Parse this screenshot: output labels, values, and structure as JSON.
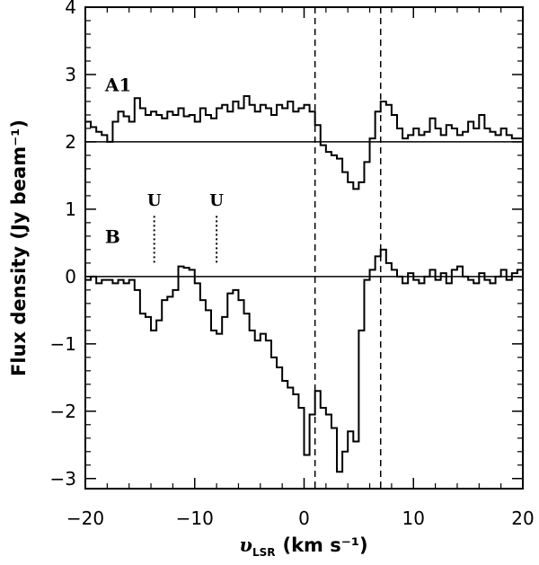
{
  "chart_data": {
    "type": "line",
    "title": "",
    "xlabel_main": "υ",
    "xlabel_sub": "LSR",
    "xlabel_units": "(km s⁻¹)",
    "ylabel": "Flux density (Jy beam⁻¹)",
    "xlim": [
      -20,
      20
    ],
    "ylim": [
      -3.15,
      4
    ],
    "xticks": [
      -20,
      -10,
      0,
      10,
      20
    ],
    "xtick_labels": [
      "−20",
      "−10",
      "0",
      "10",
      "20"
    ],
    "yticks": [
      -3,
      -2,
      -1,
      0,
      1,
      2,
      3,
      4
    ],
    "ytick_labels": [
      "−3",
      "−2",
      "−1",
      "0",
      "1",
      "2",
      "3",
      "4"
    ],
    "grid": false,
    "line_style": "histogram-step",
    "color": "#000000",
    "baselines": [
      2.0,
      0.0
    ],
    "vlines_dashed": [
      1.0,
      7.0
    ],
    "panel_labels": [
      {
        "text": "A1",
        "x": -18.2,
        "y": 2.75
      },
      {
        "text": "B",
        "x": -18.2,
        "y": 0.5
      }
    ],
    "markers": [
      {
        "text": "U",
        "x": -13.7,
        "y_text": 1.05,
        "y_top": 0.9,
        "y_bottom": 0.2
      },
      {
        "text": "U",
        "x": -8.0,
        "y_text": 1.05,
        "y_top": 0.9,
        "y_bottom": 0.2
      }
    ],
    "series": [
      {
        "name": "A1",
        "x": [
          -20.0,
          -19.5,
          -19.0,
          -18.5,
          -18.0,
          -17.5,
          -17.0,
          -16.5,
          -16.0,
          -15.5,
          -15.0,
          -14.5,
          -14.0,
          -13.5,
          -13.0,
          -12.5,
          -12.0,
          -11.5,
          -11.0,
          -10.5,
          -10.0,
          -9.5,
          -9.0,
          -8.5,
          -8.0,
          -7.5,
          -7.0,
          -6.5,
          -6.0,
          -5.5,
          -5.0,
          -4.5,
          -4.0,
          -3.5,
          -3.0,
          -2.5,
          -2.0,
          -1.5,
          -1.0,
          -0.5,
          0.0,
          0.5,
          1.0,
          1.5,
          2.0,
          2.5,
          3.0,
          3.5,
          4.0,
          4.5,
          5.0,
          5.5,
          6.0,
          6.5,
          7.0,
          7.5,
          8.0,
          8.5,
          9.0,
          9.5,
          10.0,
          10.5,
          11.0,
          11.5,
          12.0,
          12.5,
          13.0,
          13.5,
          14.0,
          14.5,
          15.0,
          15.5,
          16.0,
          16.5,
          17.0,
          17.5,
          18.0,
          18.5,
          19.0,
          19.5
        ],
        "y": [
          2.3,
          2.22,
          2.15,
          2.1,
          2.0,
          2.3,
          2.45,
          2.38,
          2.3,
          2.65,
          2.5,
          2.4,
          2.45,
          2.4,
          2.35,
          2.45,
          2.4,
          2.5,
          2.38,
          2.4,
          2.3,
          2.5,
          2.4,
          2.35,
          2.5,
          2.55,
          2.45,
          2.6,
          2.5,
          2.68,
          2.55,
          2.45,
          2.55,
          2.5,
          2.4,
          2.55,
          2.5,
          2.6,
          2.45,
          2.5,
          2.55,
          2.45,
          2.25,
          1.95,
          1.85,
          1.8,
          1.75,
          1.55,
          1.4,
          1.3,
          1.4,
          1.7,
          2.05,
          2.45,
          2.6,
          2.55,
          2.4,
          2.2,
          2.05,
          2.1,
          2.2,
          2.1,
          2.15,
          2.35,
          2.2,
          2.1,
          2.25,
          2.2,
          2.1,
          2.15,
          2.3,
          2.2,
          2.4,
          2.2,
          2.15,
          2.1,
          2.2,
          2.1,
          2.05,
          2.05
        ]
      },
      {
        "name": "B",
        "x": [
          -20.0,
          -19.5,
          -19.0,
          -18.5,
          -18.0,
          -17.5,
          -17.0,
          -16.5,
          -16.0,
          -15.5,
          -15.0,
          -14.5,
          -14.0,
          -13.5,
          -13.0,
          -12.5,
          -12.0,
          -11.5,
          -11.0,
          -10.5,
          -10.0,
          -9.5,
          -9.0,
          -8.5,
          -8.0,
          -7.5,
          -7.0,
          -6.5,
          -6.0,
          -5.5,
          -5.0,
          -4.5,
          -4.0,
          -3.5,
          -3.0,
          -2.5,
          -2.0,
          -1.5,
          -1.0,
          -0.5,
          0.0,
          0.5,
          1.0,
          1.5,
          2.0,
          2.5,
          3.0,
          3.5,
          4.0,
          4.5,
          5.0,
          5.5,
          6.0,
          6.5,
          7.0,
          7.5,
          8.0,
          8.5,
          9.0,
          9.5,
          10.0,
          10.5,
          11.0,
          11.5,
          12.0,
          12.5,
          13.0,
          13.5,
          14.0,
          14.5,
          15.0,
          15.5,
          16.0,
          16.5,
          17.0,
          17.5,
          18.0,
          18.5,
          19.0,
          19.5
        ],
        "y": [
          -0.05,
          0.0,
          -0.1,
          -0.05,
          -0.05,
          -0.1,
          -0.05,
          -0.1,
          -0.05,
          -0.2,
          -0.55,
          -0.6,
          -0.8,
          -0.65,
          -0.35,
          -0.3,
          -0.2,
          0.15,
          0.13,
          0.1,
          -0.1,
          -0.35,
          -0.5,
          -0.8,
          -0.85,
          -0.6,
          -0.25,
          -0.2,
          -0.35,
          -0.55,
          -0.8,
          -0.95,
          -0.85,
          -0.95,
          -1.2,
          -1.35,
          -1.55,
          -1.65,
          -1.75,
          -1.95,
          -2.65,
          -2.05,
          -1.7,
          -1.95,
          -2.05,
          -2.25,
          -2.9,
          -2.6,
          -2.3,
          -2.45,
          -0.8,
          -0.05,
          0.1,
          0.3,
          0.4,
          0.2,
          0.1,
          0.0,
          -0.1,
          0.05,
          -0.05,
          -0.1,
          0.0,
          0.1,
          -0.05,
          0.05,
          -0.1,
          0.1,
          0.15,
          0.0,
          -0.05,
          -0.1,
          0.05,
          -0.05,
          -0.1,
          0.0,
          0.1,
          -0.05,
          0.05,
          0.1
        ]
      }
    ]
  }
}
